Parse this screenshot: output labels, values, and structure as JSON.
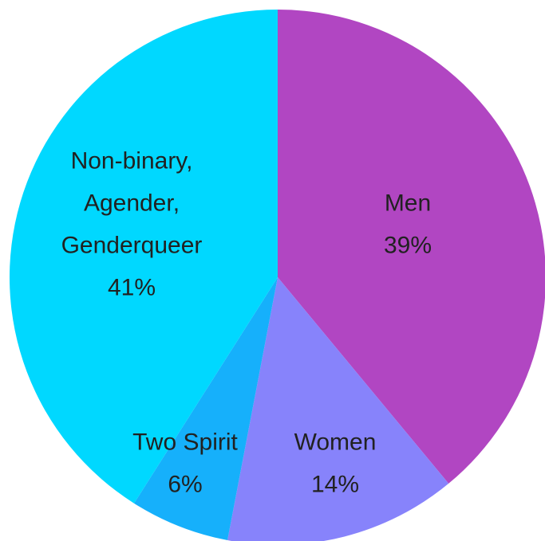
{
  "chart_data": {
    "type": "pie",
    "categories": [
      "Men",
      "Women",
      "Two Spirit",
      "Non-binary,\nAgender,\nGenderqueer"
    ],
    "values": [
      39,
      14,
      6,
      41
    ],
    "value_labels": [
      "39%",
      "14%",
      "6%",
      "41%"
    ],
    "colors": [
      "#b146c2",
      "#8783fb",
      "#16b0fb",
      "#00d8ff"
    ]
  }
}
